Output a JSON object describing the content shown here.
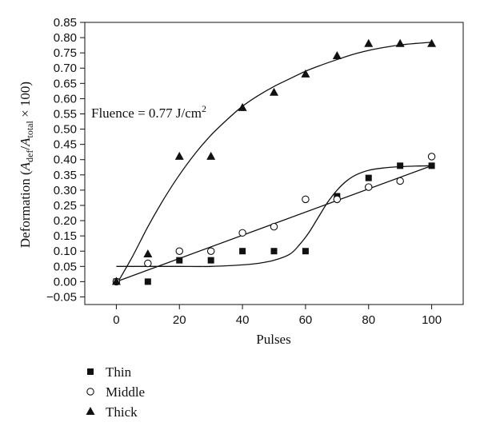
{
  "chart_data": {
    "type": "scatter",
    "x_label": "Pulses",
    "y_label": {
      "prefix": "Deformation (",
      "a1": "A",
      "sub1": "def",
      "slash": "/",
      "a2": "A",
      "sub2": "total",
      "suffix": " × 100)"
    },
    "annotation": {
      "text": "Fluence = 0.77 J/cm",
      "sup": "2"
    },
    "x_ticks": [
      "0",
      "20",
      "40",
      "60",
      "80",
      "100"
    ],
    "y_ticks": [
      "0.85",
      "0.80",
      "0.75",
      "0.70",
      "0.65",
      "0.60",
      "0.55",
      "0.50",
      "0.45",
      "0.40",
      "0.35",
      "0.30",
      "0.25",
      "0.20",
      "0.15",
      "0.10",
      "0.05",
      "0.00",
      "−0.05"
    ],
    "xlim": [
      -10,
      110
    ],
    "ylim": [
      -0.075,
      0.85
    ],
    "grid": false,
    "legend_position": "below-left",
    "series": [
      {
        "name": "Thin",
        "marker": "square",
        "points": [
          [
            0,
            0.0
          ],
          [
            10,
            0.0
          ],
          [
            20,
            0.07
          ],
          [
            30,
            0.07
          ],
          [
            40,
            0.1
          ],
          [
            50,
            0.1
          ],
          [
            60,
            0.1
          ],
          [
            70,
            0.28
          ],
          [
            80,
            0.34
          ],
          [
            90,
            0.38
          ],
          [
            100,
            0.38
          ]
        ]
      },
      {
        "name": "Middle",
        "marker": "circle-open",
        "points": [
          [
            0,
            0.0
          ],
          [
            10,
            0.06
          ],
          [
            20,
            0.1
          ],
          [
            30,
            0.1
          ],
          [
            40,
            0.16
          ],
          [
            50,
            0.18
          ],
          [
            60,
            0.27
          ],
          [
            70,
            0.27
          ],
          [
            80,
            0.31
          ],
          [
            90,
            0.33
          ],
          [
            100,
            0.41
          ]
        ]
      },
      {
        "name": "Thick",
        "marker": "triangle",
        "points": [
          [
            0,
            0.0
          ],
          [
            10,
            0.09
          ],
          [
            20,
            0.41
          ],
          [
            30,
            0.41
          ],
          [
            40,
            0.57
          ],
          [
            50,
            0.62
          ],
          [
            60,
            0.68
          ],
          [
            70,
            0.74
          ],
          [
            80,
            0.78
          ],
          [
            90,
            0.78
          ],
          [
            100,
            0.78
          ]
        ]
      }
    ],
    "fit_curves": [
      {
        "fits": "Thick",
        "points": [
          [
            0,
            -0.01
          ],
          [
            5,
            0.08
          ],
          [
            10,
            0.18
          ],
          [
            15,
            0.27
          ],
          [
            20,
            0.35
          ],
          [
            25,
            0.42
          ],
          [
            30,
            0.48
          ],
          [
            35,
            0.53
          ],
          [
            40,
            0.575
          ],
          [
            45,
            0.61
          ],
          [
            50,
            0.64
          ],
          [
            55,
            0.665
          ],
          [
            60,
            0.69
          ],
          [
            65,
            0.71
          ],
          [
            70,
            0.728
          ],
          [
            75,
            0.745
          ],
          [
            80,
            0.758
          ],
          [
            85,
            0.768
          ],
          [
            90,
            0.776
          ],
          [
            95,
            0.781
          ],
          [
            100,
            0.785
          ]
        ]
      },
      {
        "fits": "Middle",
        "points": [
          [
            0,
            0.0
          ],
          [
            100,
            0.38
          ]
        ]
      },
      {
        "fits": "Thin",
        "points": [
          [
            0,
            0.05
          ],
          [
            10,
            0.05
          ],
          [
            20,
            0.05
          ],
          [
            30,
            0.05
          ],
          [
            40,
            0.055
          ],
          [
            45,
            0.06
          ],
          [
            50,
            0.07
          ],
          [
            55,
            0.09
          ],
          [
            58,
            0.12
          ],
          [
            61,
            0.16
          ],
          [
            64,
            0.21
          ],
          [
            67,
            0.26
          ],
          [
            70,
            0.3
          ],
          [
            73,
            0.33
          ],
          [
            76,
            0.35
          ],
          [
            80,
            0.365
          ],
          [
            85,
            0.373
          ],
          [
            90,
            0.377
          ],
          [
            95,
            0.379
          ],
          [
            100,
            0.38
          ]
        ]
      }
    ]
  }
}
